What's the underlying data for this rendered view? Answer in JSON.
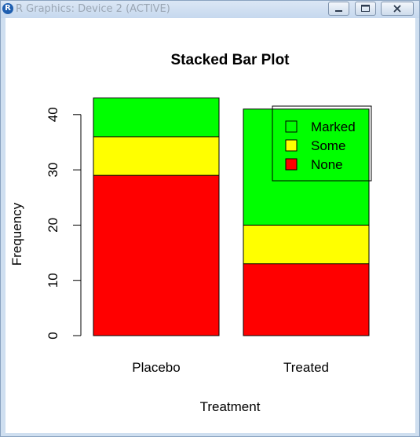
{
  "window": {
    "title": "R Graphics: Device 2 (ACTIVE)",
    "app_icon": "R"
  },
  "chart_data": {
    "type": "bar",
    "stacked": true,
    "title": "Stacked Bar Plot",
    "xlabel": "Treatment",
    "ylabel": "Frequency",
    "categories": [
      "Placebo",
      "Treated"
    ],
    "series": [
      {
        "name": "None",
        "color": "#ff0000",
        "values": [
          29,
          13
        ]
      },
      {
        "name": "Some",
        "color": "#ffff00",
        "values": [
          7,
          7
        ]
      },
      {
        "name": "Marked",
        "color": "#00ff00",
        "values": [
          7,
          21
        ]
      }
    ],
    "legend_order": [
      "Marked",
      "Some",
      "None"
    ],
    "legend_position": "top-right",
    "yticks": [
      "0",
      "10",
      "20",
      "30",
      "40"
    ],
    "ylim": [
      0,
      43
    ]
  }
}
